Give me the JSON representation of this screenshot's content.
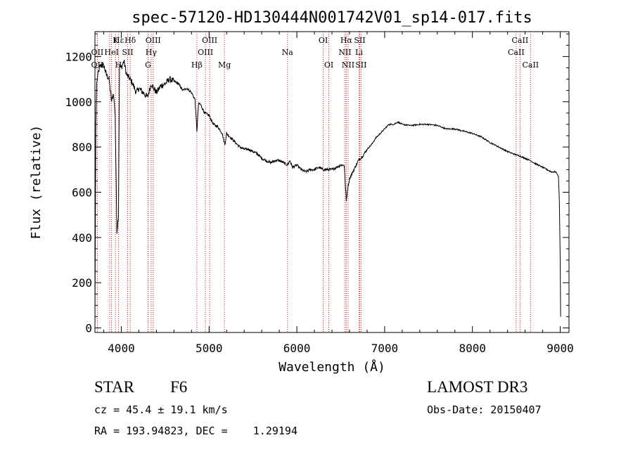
{
  "chart_data": {
    "type": "line",
    "title": "spec-57120-HD130444N001742V01_sp14-017.fits",
    "xlabel": "Wavelength (Å)",
    "ylabel": "Flux (relative)",
    "xlim": [
      3700,
      9100
    ],
    "ylim": [
      -20,
      1310
    ],
    "xticks": [
      4000,
      5000,
      6000,
      7000,
      8000,
      9000
    ],
    "yticks": [
      0,
      200,
      400,
      600,
      800,
      1000,
      1200
    ],
    "xtick_labels": [
      "4000",
      "5000",
      "6000",
      "7000",
      "8000",
      "9000"
    ],
    "ytick_labels": [
      "0",
      "200",
      "400",
      "600",
      "800",
      "1000",
      "1200"
    ],
    "series": [
      {
        "name": "flux",
        "x": [
          3700,
          3705,
          3710,
          3720,
          3735,
          3750,
          3770,
          3800,
          3830,
          3860,
          3890,
          3910,
          3930,
          3950,
          3968,
          3980,
          4000,
          4030,
          4060,
          4100,
          4130,
          4170,
          4200,
          4250,
          4300,
          4340,
          4400,
          4450,
          4500,
          4550,
          4600,
          4650,
          4700,
          4750,
          4800,
          4840,
          4861,
          4880,
          4900,
          4950,
          5000,
          5050,
          5100,
          5150,
          5180,
          5200,
          5250,
          5300,
          5350,
          5400,
          5450,
          5500,
          5550,
          5600,
          5650,
          5700,
          5750,
          5800,
          5850,
          5893,
          5920,
          5950,
          6000,
          6050,
          6100,
          6150,
          6200,
          6250,
          6300,
          6350,
          6400,
          6450,
          6500,
          6540,
          6563,
          6580,
          6600,
          6650,
          6700,
          6750,
          6800,
          6850,
          6900,
          6950,
          7000,
          7050,
          7100,
          7150,
          7200,
          7300,
          7400,
          7500,
          7600,
          7700,
          7800,
          7900,
          8000,
          8100,
          8200,
          8300,
          8400,
          8500,
          8542,
          8600,
          8662,
          8700,
          8800,
          8900,
          8950,
          8980,
          8990,
          9000,
          9005
        ],
        "values": [
          20,
          500,
          900,
          1080,
          1120,
          1150,
          1160,
          1160,
          1120,
          1100,
          1000,
          1040,
          950,
          430,
          500,
          1160,
          1150,
          1180,
          1120,
          1100,
          1080,
          1040,
          1060,
          1040,
          1020,
          1080,
          1040,
          1070,
          1080,
          1100,
          1090,
          1080,
          1050,
          1060,
          1040,
          1010,
          870,
          990,
          990,
          950,
          940,
          900,
          890,
          860,
          810,
          860,
          840,
          820,
          800,
          790,
          790,
          780,
          770,
          750,
          740,
          730,
          740,
          740,
          730,
          720,
          740,
          710,
          720,
          700,
          690,
          700,
          700,
          710,
          700,
          700,
          700,
          710,
          720,
          720,
          560,
          620,
          660,
          700,
          740,
          760,
          790,
          810,
          840,
          860,
          880,
          900,
          900,
          910,
          900,
          895,
          900,
          900,
          895,
          880,
          880,
          870,
          860,
          845,
          820,
          800,
          780,
          765,
          760,
          750,
          740,
          730,
          710,
          690,
          690,
          670,
          560,
          300,
          50
        ]
      }
    ],
    "line_labels": [
      {
        "text": "Hε",
        "wavelength": 3970,
        "row": 1
      },
      {
        "text": "K",
        "wavelength": 3934,
        "row": 1
      },
      {
        "text": "Hδ",
        "wavelength": 4102,
        "row": 1
      },
      {
        "text": "OII",
        "wavelength": 3727,
        "row": 2
      },
      {
        "text": "HeI",
        "wavelength": 3889,
        "row": 2
      },
      {
        "text": "SII",
        "wavelength": 4072,
        "row": 2
      },
      {
        "text": "OII",
        "wavelength": 3727,
        "row": 3
      },
      {
        "text": "H",
        "wavelength": 3968,
        "row": 3
      },
      {
        "text": "OIII",
        "wavelength": 4363,
        "row": 1
      },
      {
        "text": "Hγ",
        "wavelength": 4340,
        "row": 2
      },
      {
        "text": "G",
        "wavelength": 4305,
        "row": 3
      },
      {
        "text": "OIII",
        "wavelength": 5007,
        "row": 1
      },
      {
        "text": "OIII",
        "wavelength": 4959,
        "row": 2
      },
      {
        "text": "Hβ",
        "wavelength": 4861,
        "row": 3
      },
      {
        "text": "Mg",
        "wavelength": 5175,
        "row": 3
      },
      {
        "text": "Na",
        "wavelength": 5893,
        "row": 2
      },
      {
        "text": "OI",
        "wavelength": 6300,
        "row": 1
      },
      {
        "text": "OI",
        "wavelength": 6364,
        "row": 3
      },
      {
        "text": "Hα",
        "wavelength": 6563,
        "row": 1
      },
      {
        "text": "SII",
        "wavelength": 6716,
        "row": 1
      },
      {
        "text": "NII",
        "wavelength": 6548,
        "row": 2
      },
      {
        "text": "Li",
        "wavelength": 6708,
        "row": 2
      },
      {
        "text": "NII",
        "wavelength": 6584,
        "row": 3
      },
      {
        "text": "SII",
        "wavelength": 6731,
        "row": 3
      },
      {
        "text": "CaII",
        "wavelength": 8542,
        "row": 1
      },
      {
        "text": "CaII",
        "wavelength": 8498,
        "row": 2
      },
      {
        "text": "CaII",
        "wavelength": 8662,
        "row": 3
      }
    ],
    "marker_lines": [
      3727,
      3868,
      3889,
      3934,
      3968,
      4072,
      4102,
      4305,
      4340,
      4363,
      4861,
      4959,
      5007,
      5175,
      5893,
      6300,
      6364,
      6548,
      6563,
      6584,
      6708,
      6716,
      6731,
      8498,
      8542,
      8662
    ],
    "colors": {
      "spectrum": "#000000",
      "marker": "#cc2020",
      "axis": "#000000"
    }
  },
  "footer": {
    "object_class": "STAR",
    "subclass": "F6",
    "survey": "LAMOST DR3",
    "redshift": "cz = 45.4 ± 19.1 km/s",
    "obs_date": "Obs-Date: 20150407",
    "coords": "RA = 193.94823, DEC =    1.29194"
  }
}
